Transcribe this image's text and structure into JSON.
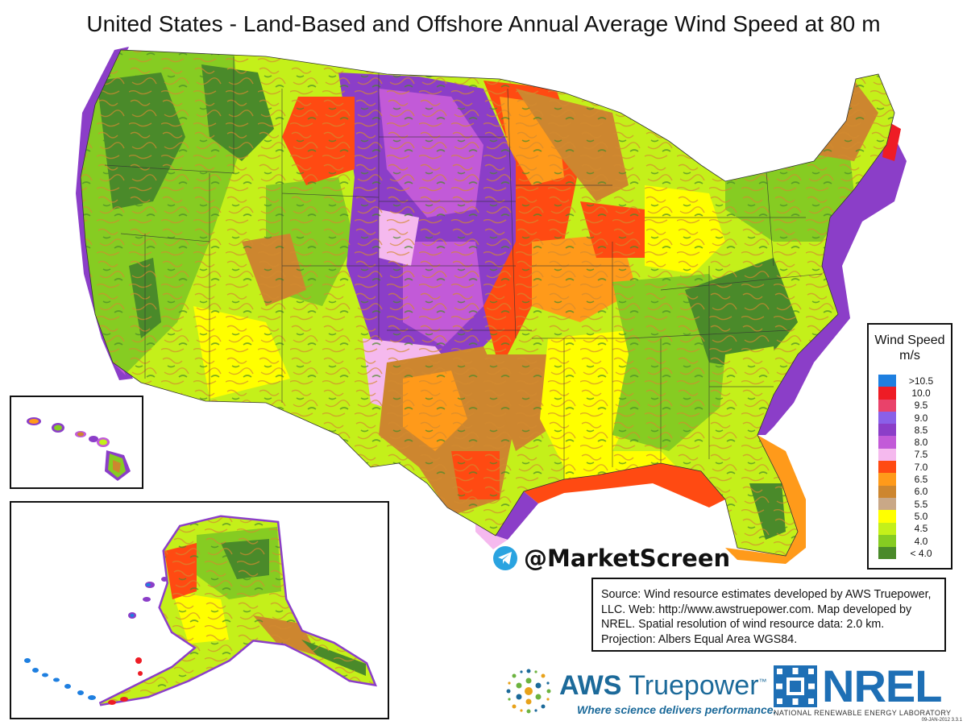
{
  "title": "United States - Land-Based and Offshore Annual Average Wind Speed at 80 m",
  "legend": {
    "title_line1": "Wind Speed",
    "title_line2": "m/s",
    "items": [
      {
        "label": ">10.5",
        "color": "#1e7fe0"
      },
      {
        "label": "10.0",
        "color": "#ee1c25"
      },
      {
        "label": "9.5",
        "color": "#e9426a"
      },
      {
        "label": "9.0",
        "color": "#8a60e8"
      },
      {
        "label": "8.5",
        "color": "#8b3ec8"
      },
      {
        "label": "8.0",
        "color": "#c25ad8"
      },
      {
        "label": "7.5",
        "color": "#f5b9ee"
      },
      {
        "label": "7.0",
        "color": "#ff4a12"
      },
      {
        "label": "6.5",
        "color": "#ff9a1a"
      },
      {
        "label": "6.0",
        "color": "#cd862f"
      },
      {
        "label": "5.5",
        "color": "#c9a887"
      },
      {
        "label": "5.0",
        "color": "#ffff00"
      },
      {
        "label": "4.5",
        "color": "#c4f01a"
      },
      {
        "label": "4.0",
        "color": "#86cc22"
      },
      {
        "label": "< 4.0",
        "color": "#4a8a2a"
      }
    ]
  },
  "source": {
    "line1": "Source: Wind resource estimates developed by AWS Truepower,",
    "line2": "LLC.  Web: http://www.awstruepower.com. Map developed by",
    "line3": "NREL.  Spatial resolution of wind resource data: 2.0 km.",
    "line4": "Projection: Albers Equal Area WGS84."
  },
  "watermark": "@MarketScreen",
  "logos": {
    "aws_part1": "AWS",
    "aws_part2": " Truepower",
    "aws_tm": "™",
    "aws_tagline": "Where science delivers performance.",
    "nrel": "NREL",
    "nrel_full": "NATIONAL RENEWABLE ENERGY LABORATORY"
  },
  "date_code": "09-JAN-2012 3.3.1"
}
